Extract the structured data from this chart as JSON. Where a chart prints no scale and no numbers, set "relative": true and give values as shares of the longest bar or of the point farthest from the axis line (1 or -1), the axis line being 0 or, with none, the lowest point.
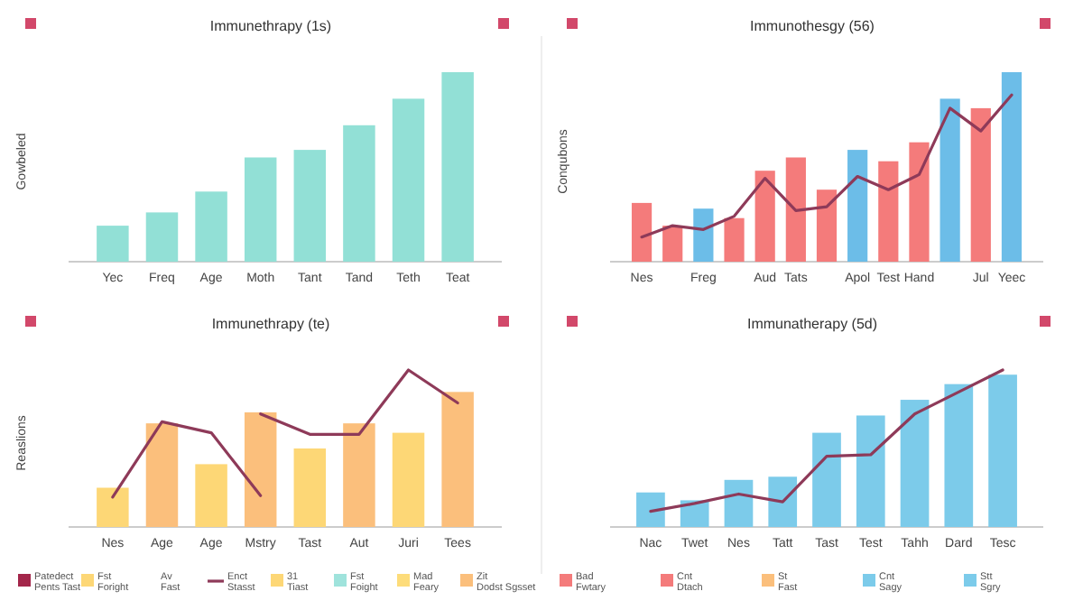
{
  "chart_data": [
    {
      "type": "bar",
      "title": "Immunethrapy (1s)",
      "ylabel": "Gowbeled",
      "relative": true,
      "categories": [
        "Yec",
        "Freq",
        "Age",
        "Moth",
        "Tant",
        "Tand",
        "Teth",
        "Teat"
      ],
      "series": [
        {
          "color": "#92e0d6",
          "values": [
            0.19,
            0.26,
            0.37,
            0.55,
            0.59,
            0.72,
            0.86,
            1
          ]
        }
      ]
    },
    {
      "type": "bar",
      "title": "Immunothesgy (56)",
      "ylabel": "Conqubons",
      "relative": true,
      "categories": [
        "Nes",
        null,
        "Freg",
        null,
        "Aud",
        "Tats",
        null,
        "Apol",
        "Test",
        "Hand",
        null,
        "Jul",
        "Yeec"
      ],
      "series": [
        {
          "colors": [
            "#f47b7b",
            "#f47b7b",
            "#6cbde8",
            "#f47b7b",
            "#f47b7b",
            "#f47b7b",
            "#f47b7b",
            "#6cbde8",
            "#f47b7b",
            "#f47b7b",
            "#6cbde8",
            "#f47b7b",
            "#6cbde8"
          ],
          "values": [
            0.31,
            0.19,
            0.28,
            0.23,
            0.48,
            0.55,
            0.38,
            0.59,
            0.53,
            0.63,
            0.86,
            0.81,
            1
          ]
        },
        {
          "type": "line",
          "color": "#8e3a59",
          "values": [
            0.13,
            0.19,
            0.17,
            0.24,
            0.44,
            0.27,
            0.29,
            0.45,
            0.38,
            0.46,
            0.81,
            0.69,
            0.88
          ]
        }
      ]
    },
    {
      "type": "bar",
      "title": "Immunethrapy (te)",
      "ylabel": "Reaslions",
      "relative": true,
      "legend": "bottom",
      "categories": [
        "Nes",
        "Age",
        "Age",
        "Mstry",
        "Tast",
        "Aut",
        "Juri",
        "Tees"
      ],
      "series": [
        {
          "name": "Patedect Pents Tast",
          "color": "#a3264a",
          "values": [
            null,
            null,
            null,
            null,
            null,
            null,
            null,
            null
          ]
        },
        {
          "name": "Fst Foright",
          "color": "#fdd776",
          "values": [
            0.25,
            null,
            0.4,
            null,
            0.5,
            null,
            0.6,
            null
          ]
        },
        {
          "name": "Av Fast",
          "values": [
            null,
            null,
            null,
            null,
            null,
            null,
            null,
            null
          ]
        },
        {
          "name": "Enct Stasst",
          "type": "line",
          "color": "#8e3a59",
          "values": [
            0.19,
            0.67,
            0.6,
            0.2,
            null,
            null,
            null,
            null
          ]
        },
        {
          "type": "line",
          "color": "#8e3a59",
          "values": [
            null,
            null,
            null,
            0.72,
            0.59,
            0.59,
            1,
            0.79
          ]
        },
        {
          "name": "31 Tiast",
          "color": "#fdd776",
          "values": [
            null,
            null,
            null,
            null,
            null,
            null,
            null,
            null
          ]
        },
        {
          "name": "Fst Foight",
          "color": "#9fe3dc",
          "values": [
            null,
            null,
            null,
            null,
            null,
            null,
            null,
            null
          ]
        },
        {
          "name": "Mad Feary",
          "color": "#fddc7a",
          "values": [
            null,
            null,
            null,
            null,
            null,
            null,
            null,
            null
          ]
        },
        {
          "name": "Zit Dodst Sgsset",
          "color": "#fbbf7c",
          "values": [
            null,
            0.66,
            null,
            0.73,
            null,
            0.66,
            null,
            0.86
          ]
        }
      ]
    },
    {
      "type": "bar",
      "title": "Immunatherapy (5d)",
      "relative": true,
      "legend": "bottom",
      "categories": [
        "Nac",
        "Twet",
        "Nes",
        "Tatt",
        "Tast",
        "Test",
        "Tahh",
        "Dard",
        "Tesc"
      ],
      "series": [
        {
          "name": "Bad Fwtary",
          "color": "#f47b7b",
          "values": [
            null,
            null,
            null,
            null,
            null,
            null,
            null,
            null,
            null
          ]
        },
        {
          "type": "line",
          "color": "#8e3a59",
          "values": [
            0.1,
            0.15,
            0.21,
            0.16,
            0.45,
            0.46,
            0.72,
            0.86,
            1
          ]
        },
        {
          "name": "Cnt Dtach",
          "color": "#f47b7b",
          "values": [
            null,
            null,
            null,
            null,
            null,
            null,
            null,
            null,
            null
          ]
        },
        {
          "name": "St Fast",
          "color": "#fbbf7c",
          "values": [
            null,
            null,
            null,
            null,
            null,
            null,
            null,
            null,
            null
          ]
        },
        {
          "name": "Cnt Sagy",
          "color": "#7ccbea",
          "values": [
            0.22,
            0.17,
            0.3,
            0.32,
            0.6,
            0.71,
            0.81,
            0.91,
            0.97
          ]
        },
        {
          "name": "Stt Sgry",
          "color": "#7ccbea",
          "values": [
            null,
            null,
            null,
            null,
            null,
            null,
            null,
            null,
            null
          ]
        }
      ]
    }
  ]
}
